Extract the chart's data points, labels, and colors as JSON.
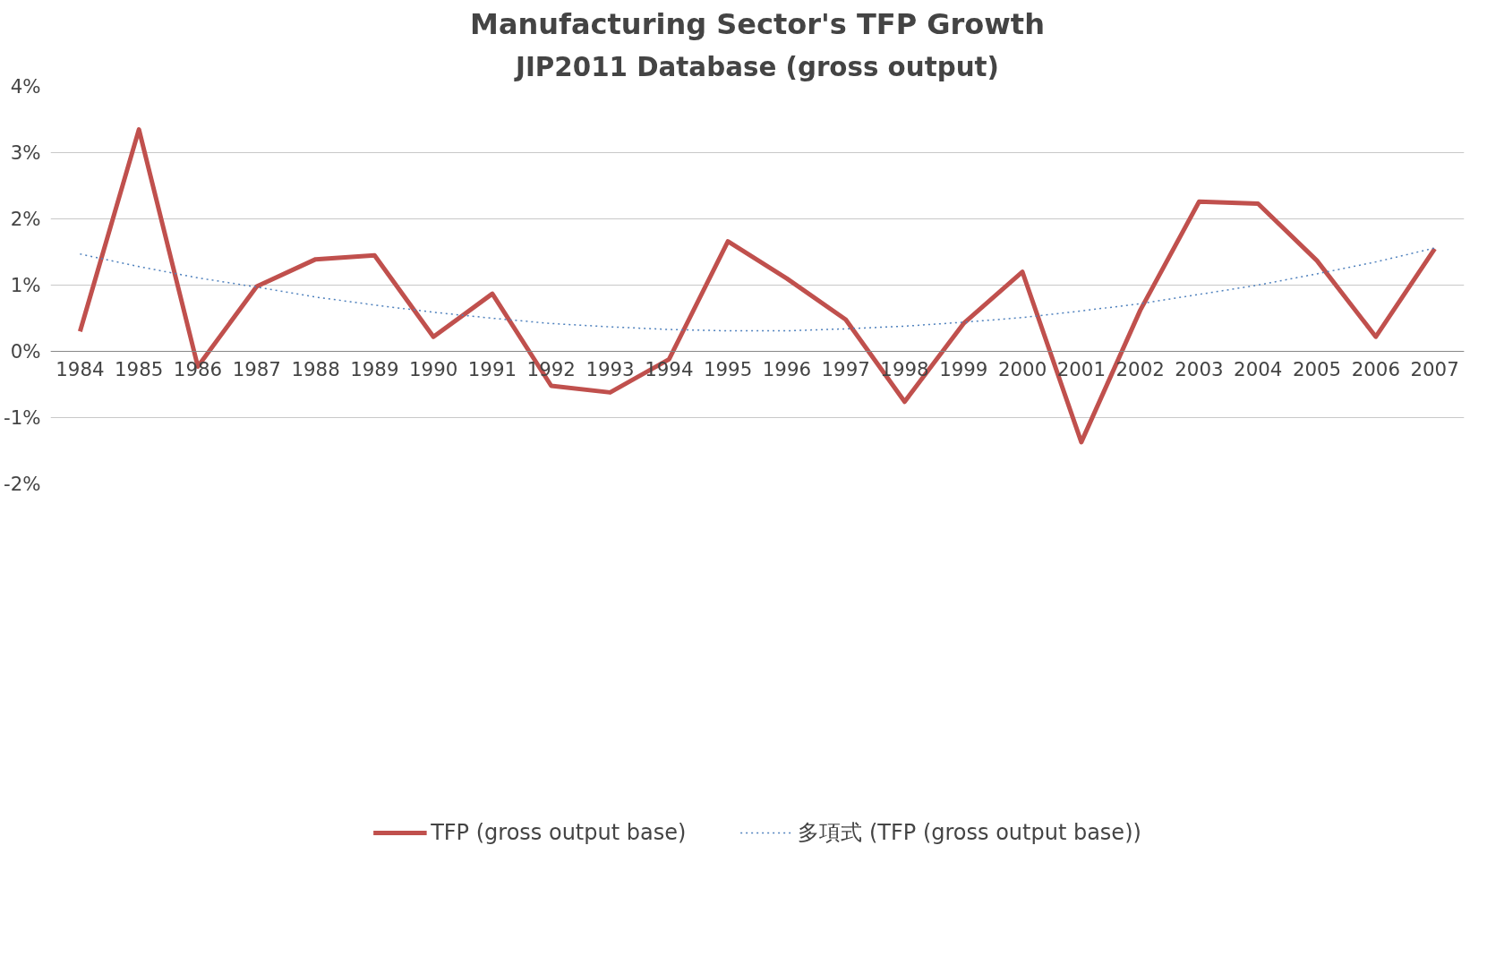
{
  "chart_data": {
    "type": "line",
    "title": "Manufacturing Sector's TFP Growth",
    "subtitle": "JIP2011 Database (gross output)",
    "categories": [
      "1984",
      "1985",
      "1986",
      "1987",
      "1988",
      "1989",
      "1990",
      "1991",
      "1992",
      "1993",
      "1994",
      "1995",
      "1996",
      "1997",
      "1998",
      "1999",
      "2000",
      "2001",
      "2002",
      "2003",
      "2004",
      "2005",
      "2006",
      "2007"
    ],
    "series": [
      {
        "name": "TFP (gross output base)",
        "color": "#c0504d",
        "line_style": "solid",
        "values": [
          0.3,
          3.35,
          -0.23,
          0.98,
          1.39,
          1.45,
          0.22,
          0.87,
          -0.52,
          -0.62,
          -0.12,
          1.66,
          1.1,
          0.48,
          -0.76,
          0.42,
          1.2,
          -1.37,
          0.62,
          2.26,
          2.23,
          1.37,
          0.22,
          1.55
        ]
      },
      {
        "name": "多項式 (TFP (gross output base))",
        "color": "#4f81bd",
        "line_style": "dotted",
        "values": [
          1.47,
          1.28,
          1.11,
          0.97,
          0.82,
          0.7,
          0.59,
          0.5,
          0.42,
          0.37,
          0.33,
          0.31,
          0.31,
          0.34,
          0.38,
          0.44,
          0.51,
          0.61,
          0.72,
          0.86,
          1.0,
          1.17,
          1.35,
          1.56
        ]
      }
    ],
    "ylim": [
      -2,
      4
    ],
    "yticks": [
      {
        "value": -2,
        "label": "-2%"
      },
      {
        "value": -1,
        "label": "-1%"
      },
      {
        "value": 0,
        "label": "0%"
      },
      {
        "value": 1,
        "label": "1%"
      },
      {
        "value": 2,
        "label": "2%"
      },
      {
        "value": 3,
        "label": "3%"
      },
      {
        "value": 4,
        "label": "4%"
      }
    ],
    "grid": "y",
    "legend": "bottom",
    "marker": "none"
  }
}
